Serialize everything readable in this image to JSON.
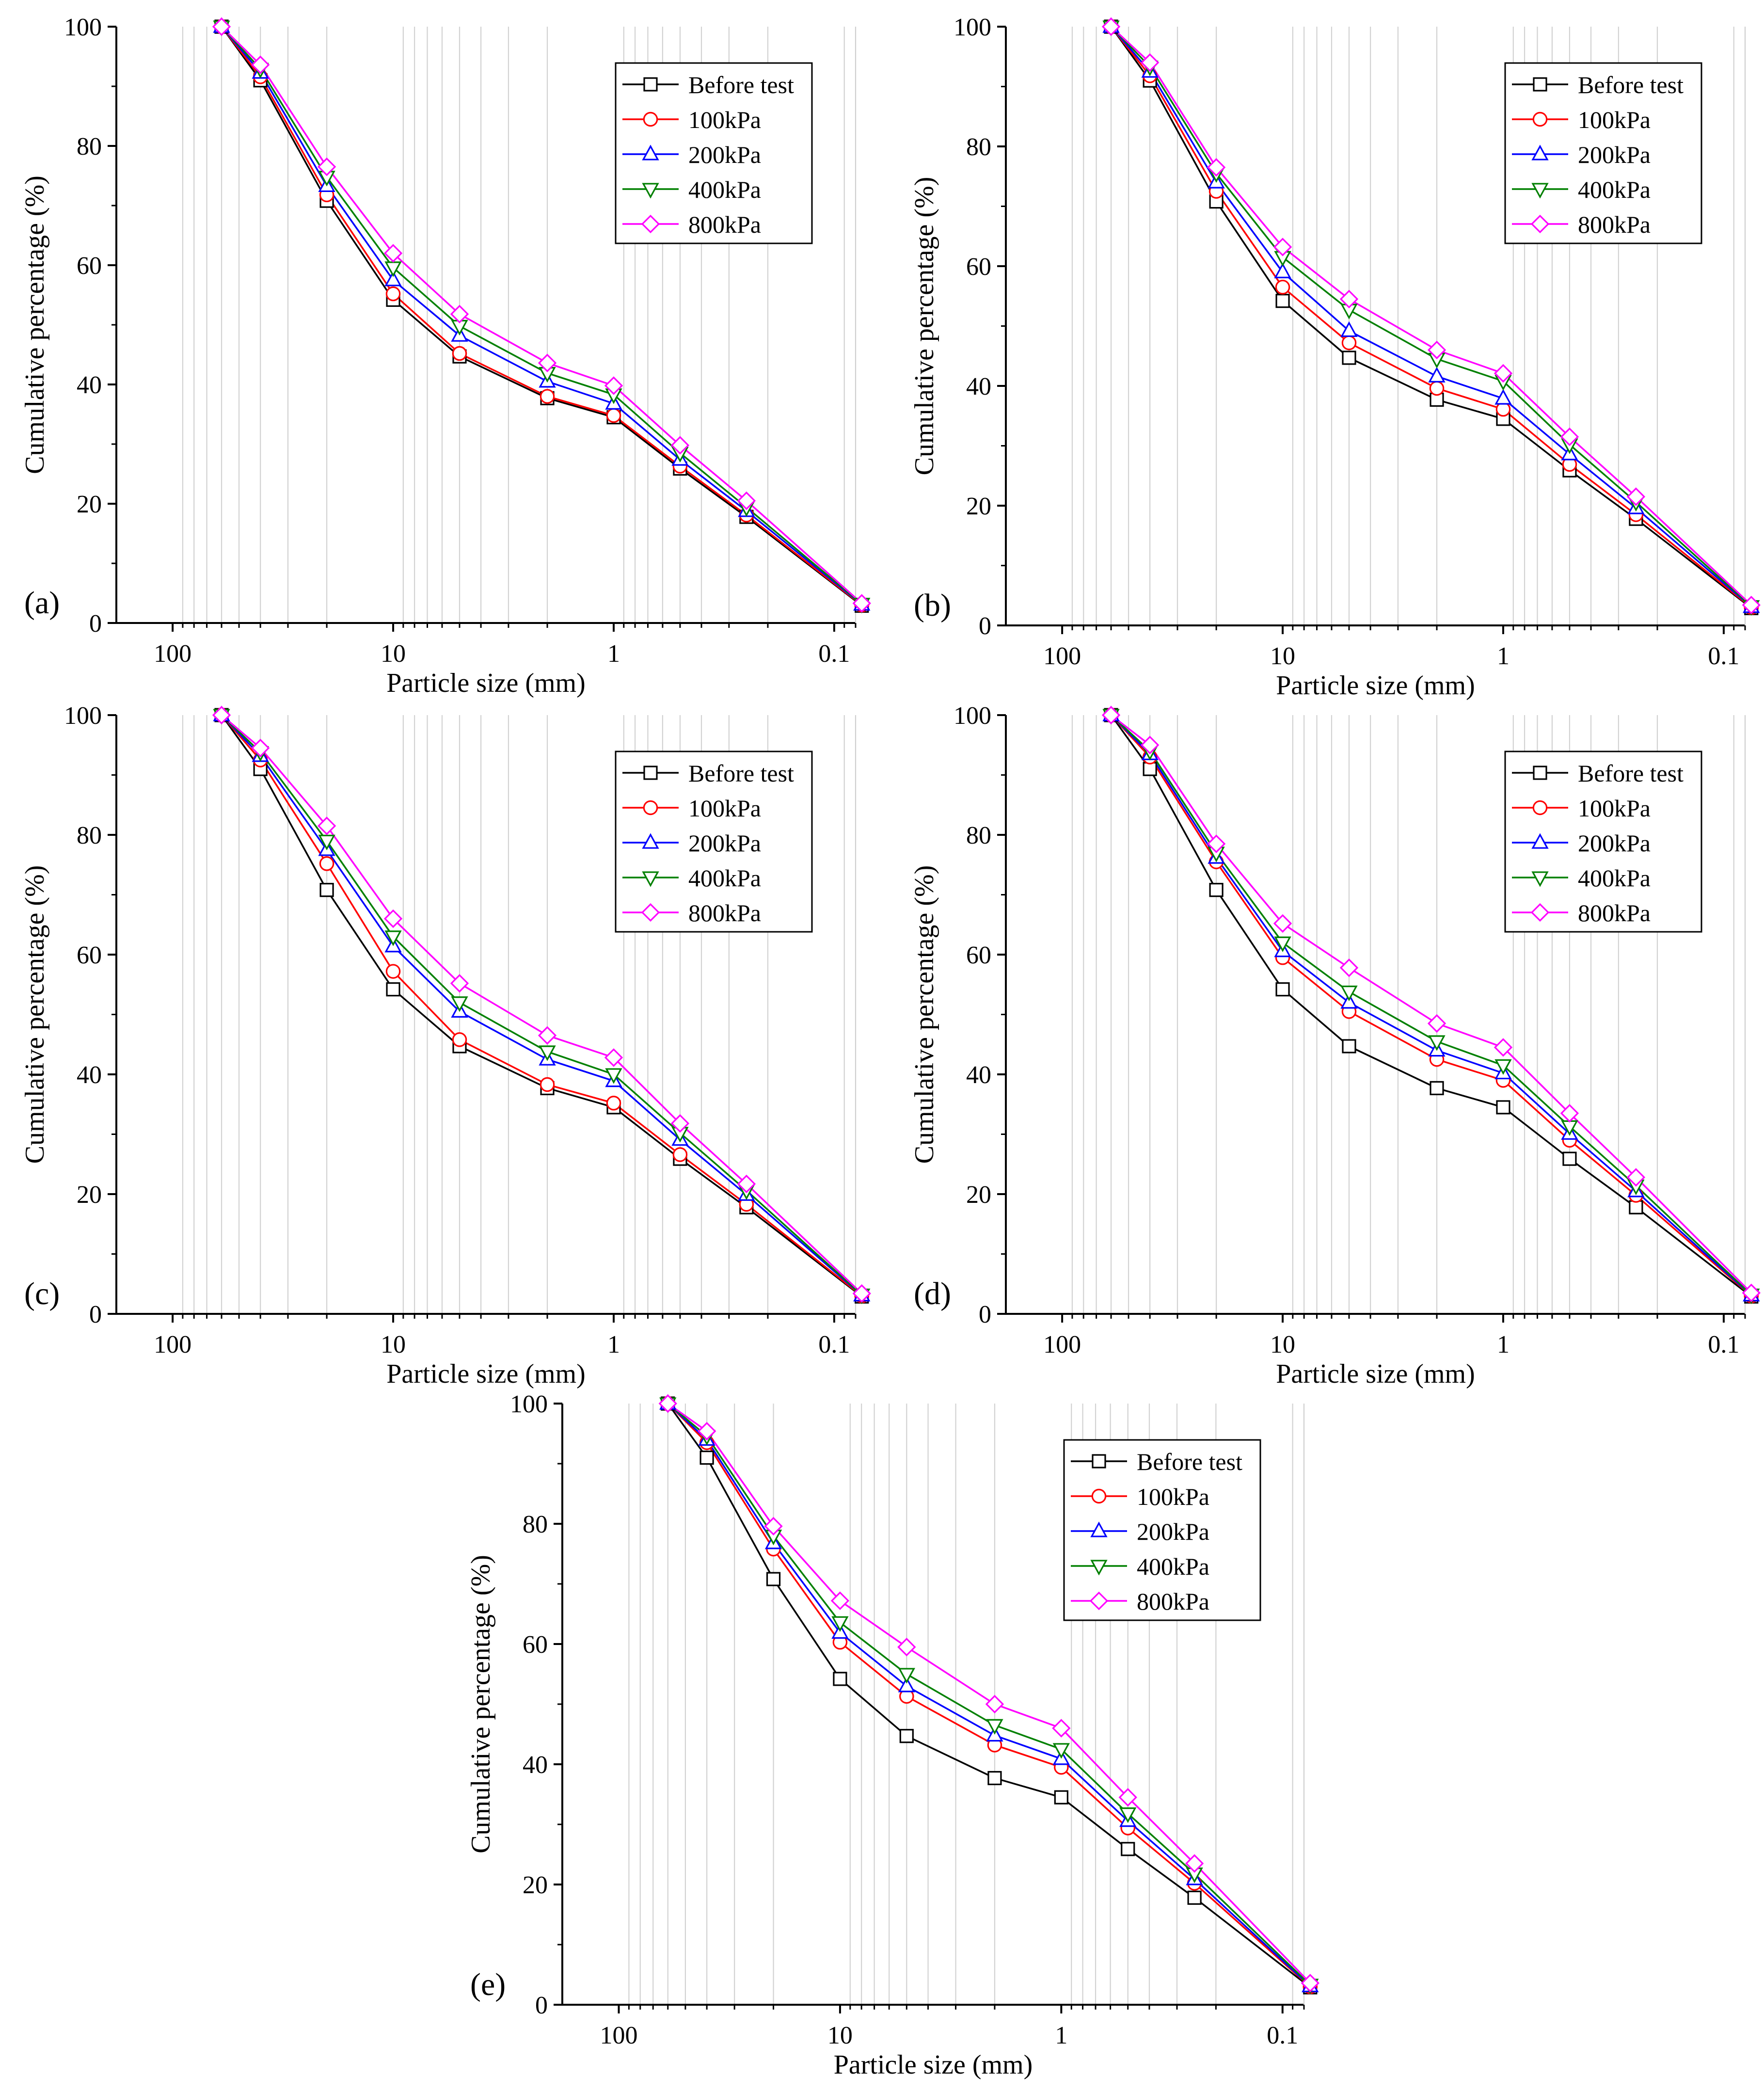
{
  "chart_data": [
    {
      "type": "line",
      "panel_label": "(a)",
      "xlabel": "Particle size (mm)",
      "ylabel": "Cumulative percentage (%)",
      "x_scale": "log",
      "x_reversed": true,
      "xlim": [
        180,
        0.08
      ],
      "ylim": [
        0,
        100
      ],
      "x_tick_labels": [
        "100",
        "10",
        "1",
        "0.1"
      ],
      "y_tick_labels": [
        "0",
        "20",
        "40",
        "60",
        "80",
        "100"
      ],
      "legend_position": "top-right",
      "x": [
        60,
        40,
        20,
        10,
        5,
        2,
        1,
        0.5,
        0.25,
        0.075
      ],
      "series": [
        {
          "name": "Before test",
          "color": "#000000",
          "marker": "square",
          "values": [
            100,
            91,
            70.8,
            54.2,
            44.7,
            37.7,
            34.5,
            25.9,
            17.8,
            2.9
          ]
        },
        {
          "name": "100kPa",
          "color": "#ff0000",
          "marker": "circle",
          "values": [
            100,
            91.6,
            71.8,
            55.2,
            45.2,
            38.0,
            34.8,
            26.3,
            18.1,
            3.0
          ]
        },
        {
          "name": "200kPa",
          "color": "#0000ff",
          "marker": "triangle-up",
          "values": [
            100,
            92.3,
            73.3,
            57.5,
            48.2,
            40.5,
            36.8,
            27.4,
            18.8,
            3.1
          ]
        },
        {
          "name": "400kPa",
          "color": "#008000",
          "marker": "triangle-down",
          "values": [
            100,
            92.9,
            74.8,
            59.6,
            49.8,
            41.9,
            38.3,
            28.5,
            19.4,
            3.2
          ]
        },
        {
          "name": "800kPa",
          "color": "#ff00ff",
          "marker": "diamond",
          "values": [
            100,
            93.6,
            76.5,
            62.0,
            51.8,
            43.6,
            39.8,
            29.8,
            20.5,
            3.3
          ]
        }
      ]
    },
    {
      "type": "line",
      "panel_label": "(b)",
      "xlabel": "Particle size (mm)",
      "ylabel": "Cumulative percentage (%)",
      "x_scale": "log",
      "x_reversed": true,
      "xlim": [
        180,
        0.08
      ],
      "ylim": [
        0,
        100
      ],
      "x_tick_labels": [
        "100",
        "10",
        "1",
        "0.1"
      ],
      "y_tick_labels": [
        "0",
        "20",
        "40",
        "60",
        "80",
        "100"
      ],
      "legend_position": "top-right",
      "x": [
        60,
        40,
        20,
        10,
        5,
        2,
        1,
        0.5,
        0.25,
        0.075
      ],
      "series": [
        {
          "name": "Before test",
          "color": "#000000",
          "marker": "square",
          "values": [
            100,
            91,
            70.8,
            54.2,
            44.7,
            37.7,
            34.5,
            25.9,
            17.8,
            2.9
          ]
        },
        {
          "name": "100kPa",
          "color": "#ff0000",
          "marker": "circle",
          "values": [
            100,
            91.8,
            72.5,
            56.5,
            47.2,
            39.6,
            36.1,
            26.9,
            18.5,
            3.0
          ]
        },
        {
          "name": "200kPa",
          "color": "#0000ff",
          "marker": "triangle-up",
          "values": [
            100,
            92.5,
            74.0,
            59.0,
            49.2,
            41.6,
            37.9,
            28.6,
            19.6,
            3.1
          ]
        },
        {
          "name": "400kPa",
          "color": "#008000",
          "marker": "triangle-down",
          "values": [
            100,
            93.3,
            75.5,
            61.5,
            52.7,
            44.5,
            40.8,
            30.2,
            20.6,
            3.2
          ]
        },
        {
          "name": "800kPa",
          "color": "#ff00ff",
          "marker": "diamond",
          "values": [
            100,
            94.0,
            76.5,
            63.2,
            54.5,
            46.0,
            42.1,
            31.5,
            21.5,
            3.4
          ]
        }
      ]
    },
    {
      "type": "line",
      "panel_label": "(c)",
      "xlabel": "Particle size (mm)",
      "ylabel": "Cumulative percentage (%)",
      "x_scale": "log",
      "x_reversed": true,
      "xlim": [
        180,
        0.08
      ],
      "ylim": [
        0,
        100
      ],
      "x_tick_labels": [
        "100",
        "10",
        "1",
        "0.1"
      ],
      "y_tick_labels": [
        "0",
        "20",
        "40",
        "60",
        "80",
        "100"
      ],
      "legend_position": "top-right",
      "x": [
        60,
        40,
        20,
        10,
        5,
        2,
        1,
        0.5,
        0.25,
        0.075
      ],
      "series": [
        {
          "name": "Before test",
          "color": "#000000",
          "marker": "square",
          "values": [
            100,
            91,
            70.8,
            54.2,
            44.7,
            37.7,
            34.5,
            25.9,
            17.8,
            2.9
          ]
        },
        {
          "name": "100kPa",
          "color": "#ff0000",
          "marker": "circle",
          "values": [
            100,
            92.5,
            75.2,
            57.2,
            45.8,
            38.3,
            35.2,
            26.6,
            18.3,
            3.0
          ]
        },
        {
          "name": "200kPa",
          "color": "#0000ff",
          "marker": "triangle-up",
          "values": [
            100,
            93.2,
            77.5,
            61.4,
            50.5,
            42.5,
            38.9,
            29.1,
            19.9,
            3.1
          ]
        },
        {
          "name": "400kPa",
          "color": "#008000",
          "marker": "triangle-down",
          "values": [
            100,
            93.8,
            79.0,
            63.0,
            52.0,
            43.8,
            40.0,
            30.2,
            20.6,
            3.2
          ]
        },
        {
          "name": "800kPa",
          "color": "#ff00ff",
          "marker": "diamond",
          "values": [
            100,
            94.5,
            81.5,
            66.0,
            55.2,
            46.5,
            42.8,
            31.8,
            21.7,
            3.4
          ]
        }
      ]
    },
    {
      "type": "line",
      "panel_label": "(d)",
      "xlabel": "Particle size (mm)",
      "ylabel": "Cumulative percentage (%)",
      "x_scale": "log",
      "x_reversed": true,
      "xlim": [
        180,
        0.08
      ],
      "ylim": [
        0,
        100
      ],
      "x_tick_labels": [
        "100",
        "10",
        "1",
        "0.1"
      ],
      "y_tick_labels": [
        "0",
        "20",
        "40",
        "60",
        "80",
        "100"
      ],
      "legend_position": "top-right",
      "x": [
        60,
        40,
        20,
        10,
        5,
        2,
        1,
        0.5,
        0.25,
        0.075
      ],
      "series": [
        {
          "name": "Before test",
          "color": "#000000",
          "marker": "square",
          "values": [
            100,
            91,
            70.8,
            54.2,
            44.7,
            37.7,
            34.5,
            25.9,
            17.8,
            2.9
          ]
        },
        {
          "name": "100kPa",
          "color": "#ff0000",
          "marker": "circle",
          "values": [
            100,
            93.0,
            75.5,
            59.5,
            50.5,
            42.5,
            39.0,
            29.0,
            19.8,
            3.0
          ]
        },
        {
          "name": "200kPa",
          "color": "#0000ff",
          "marker": "triangle-up",
          "values": [
            100,
            93.5,
            76.2,
            60.6,
            52.0,
            44.0,
            40.2,
            30.1,
            20.5,
            3.1
          ]
        },
        {
          "name": "400kPa",
          "color": "#008000",
          "marker": "triangle-down",
          "values": [
            100,
            94.0,
            77.0,
            62.0,
            53.8,
            45.5,
            41.5,
            31.3,
            21.4,
            3.2
          ]
        },
        {
          "name": "800kPa",
          "color": "#ff00ff",
          "marker": "diamond",
          "values": [
            100,
            95.0,
            78.5,
            65.2,
            57.8,
            48.5,
            44.5,
            33.5,
            22.8,
            3.5
          ]
        }
      ]
    },
    {
      "type": "line",
      "panel_label": "(e)",
      "xlabel": "Particle size (mm)",
      "ylabel": "Cumulative percentage (%)",
      "x_scale": "log",
      "x_reversed": true,
      "xlim": [
        180,
        0.08
      ],
      "ylim": [
        0,
        100
      ],
      "x_tick_labels": [
        "100",
        "10",
        "1",
        "0.1"
      ],
      "y_tick_labels": [
        "0",
        "20",
        "40",
        "60",
        "80",
        "100"
      ],
      "legend_position": "top-right",
      "x": [
        60,
        40,
        20,
        10,
        5,
        2,
        1,
        0.5,
        0.25,
        0.075
      ],
      "series": [
        {
          "name": "Before test",
          "color": "#000000",
          "marker": "square",
          "values": [
            100,
            91,
            70.8,
            54.2,
            44.7,
            37.7,
            34.5,
            25.9,
            17.8,
            2.9
          ]
        },
        {
          "name": "100kPa",
          "color": "#ff0000",
          "marker": "circle",
          "values": [
            100,
            93.5,
            75.8,
            60.3,
            51.3,
            43.2,
            39.5,
            29.4,
            20.2,
            3.0
          ]
        },
        {
          "name": "200kPa",
          "color": "#0000ff",
          "marker": "triangle-up",
          "values": [
            100,
            94.0,
            76.8,
            61.9,
            53.0,
            44.8,
            40.9,
            30.6,
            20.9,
            3.1
          ]
        },
        {
          "name": "400kPa",
          "color": "#008000",
          "marker": "triangle-down",
          "values": [
            100,
            94.6,
            78.0,
            63.6,
            55.0,
            46.5,
            42.5,
            31.8,
            21.8,
            3.3
          ]
        },
        {
          "name": "800kPa",
          "color": "#ff00ff",
          "marker": "diamond",
          "values": [
            100,
            95.4,
            79.6,
            67.2,
            59.5,
            50.0,
            46.0,
            34.5,
            23.5,
            3.6
          ]
        }
      ]
    }
  ]
}
